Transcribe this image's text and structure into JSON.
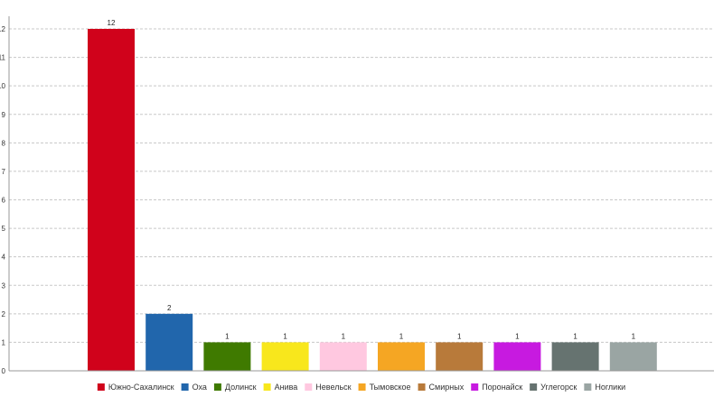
{
  "chart_data": {
    "type": "bar",
    "categories": [
      "Южно-Сахалинск",
      "Оха",
      "Долинск",
      "Анива",
      "Невельск",
      "Тымовское",
      "Смирных",
      "Поронайск",
      "Углегорск",
      "Ноглики"
    ],
    "values": [
      12,
      2,
      1,
      1,
      1,
      1,
      1,
      1,
      1,
      1
    ],
    "colors": [
      "#d0021b",
      "#2166ac",
      "#3f7a00",
      "#f8e71c",
      "#ffc8e0",
      "#f5a623",
      "#b87a3a",
      "#c71ae0",
      "#667370",
      "#9aa5a3"
    ],
    "yticks": [
      "0",
      "1",
      "2",
      "3",
      "4",
      "5",
      "6",
      "7",
      "8",
      "9",
      "10",
      "11",
      "12"
    ],
    "ylim": [
      0,
      12
    ],
    "grid": true,
    "legend_position": "bottom-center",
    "title": "",
    "xlabel": "",
    "ylabel": ""
  }
}
